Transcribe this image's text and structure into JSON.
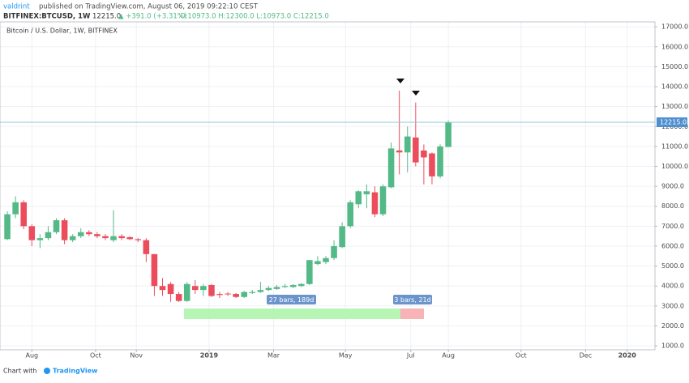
{
  "header": {
    "author": "valdrint",
    "published": "published on TradingView.com, August 06, 2019 09:22:10 CEST",
    "symbol": "BITFINEX:BTCUSD, 1W",
    "last": "12215.0",
    "change": "▲ +391.0 (+3.31%)",
    "ohlc_text": "O:10973.0 H:12300.0 L:10973.0 C:12215.0"
  },
  "footer": {
    "text": "Chart with",
    "brand": "TradingView"
  },
  "chart_data": {
    "type": "candlestick",
    "title": "Bitcoin / U.S. Dollar, 1W, BITFINEX",
    "up_color": "#53b987",
    "down_color": "#eb4d5c",
    "grid": true,
    "open": [
      6350,
      7600,
      8200,
      7000,
      6300,
      6400,
      6700,
      7300,
      6300,
      6500,
      6700,
      6600,
      6500,
      6300,
      6500,
      6450,
      6350,
      6300,
      5600,
      4000,
      4100,
      3600,
      3250,
      4000,
      3800,
      4050,
      3600,
      3620,
      3600,
      3450,
      3650,
      3700,
      3800,
      3850,
      3950,
      3950,
      4000,
      4100,
      5100,
      5200,
      5400,
      5950,
      7000,
      8100,
      8600,
      8700,
      7600,
      8950,
      10800,
      10700,
      11450,
      10800,
      10650,
      9500,
      10973
    ],
    "high": [
      7750,
      8500,
      8300,
      7100,
      6600,
      7000,
      7400,
      7400,
      6600,
      6900,
      6800,
      6700,
      6600,
      7800,
      6600,
      6500,
      6400,
      6400,
      5600,
      4400,
      4200,
      3700,
      4200,
      4300,
      4100,
      4100,
      3700,
      3700,
      3650,
      3750,
      3800,
      4200,
      4000,
      4050,
      4100,
      4100,
      4150,
      5300,
      5500,
      5500,
      6300,
      7200,
      8300,
      8800,
      9100,
      9000,
      9100,
      11200,
      13800,
      12000,
      13200,
      11100,
      10700,
      11100,
      12300
    ],
    "low": [
      6300,
      7400,
      6850,
      6000,
      5900,
      6300,
      6600,
      6100,
      6200,
      6400,
      6500,
      6400,
      6300,
      6200,
      6300,
      6300,
      6200,
      5200,
      3500,
      3500,
      3200,
      3200,
      3200,
      3600,
      3500,
      3450,
      3400,
      3500,
      3400,
      3400,
      3600,
      3650,
      3750,
      3800,
      3900,
      3900,
      3950,
      4050,
      5050,
      5100,
      5300,
      5900,
      6900,
      7900,
      7900,
      7450,
      7500,
      8900,
      9600,
      9700,
      10000,
      9100,
      9100,
      9400,
      10973
    ],
    "close": [
      7600,
      8200,
      7000,
      6300,
      6400,
      6700,
      7300,
      6300,
      6500,
      6700,
      6600,
      6500,
      6400,
      6500,
      6400,
      6350,
      6300,
      5600,
      4000,
      3800,
      3600,
      3250,
      4100,
      3800,
      4000,
      3500,
      3550,
      3580,
      3450,
      3700,
      3700,
      3800,
      3900,
      3950,
      4000,
      4050,
      4100,
      5300,
      5250,
      5400,
      6000,
      7000,
      8200,
      8750,
      8750,
      7600,
      9000,
      10900,
      10700,
      11500,
      10200,
      10450,
      9500,
      11000,
      12215
    ],
    "xlim": [
      -0.9,
      79.3
    ],
    "xticks": [
      {
        "value": 3.0,
        "label": "Aug"
      },
      {
        "value": 10.8,
        "label": "Oct"
      },
      {
        "value": 15.8,
        "label": "Nov"
      },
      {
        "value": 24.7,
        "label": "2019"
      },
      {
        "value": 32.6,
        "label": "Mar"
      },
      {
        "value": 41.4,
        "label": "May"
      },
      {
        "value": 49.4,
        "label": "Jul"
      },
      {
        "value": 54.0,
        "label": "Aug"
      },
      {
        "value": 62.9,
        "label": "Oct"
      },
      {
        "value": 70.8,
        "label": "Dec"
      },
      {
        "value": 75.9,
        "label": "2020"
      }
    ],
    "ylim": [
      800,
      17250
    ],
    "yticks": [
      {
        "value": 1000,
        "label": "1000.0"
      },
      {
        "value": 2000,
        "label": "2000.0"
      },
      {
        "value": 3000,
        "label": "3000.0"
      },
      {
        "value": 4000,
        "label": "4000.0"
      },
      {
        "value": 5000,
        "label": "5000.0"
      },
      {
        "value": 6000,
        "label": "6000.0"
      },
      {
        "value": 7000,
        "label": "7000.0"
      },
      {
        "value": 8000,
        "label": "8000.0"
      },
      {
        "value": 9000,
        "label": "9000.0"
      },
      {
        "value": 10000,
        "label": "10000.0"
      },
      {
        "value": 11000,
        "label": "11000.0"
      },
      {
        "value": 12000,
        "label": "12000.0"
      },
      {
        "value": 13000,
        "label": "13000.0"
      },
      {
        "value": 14000,
        "label": "14000.0"
      },
      {
        "value": 15000,
        "label": "15000.0"
      },
      {
        "value": 16000,
        "label": "16000.0"
      },
      {
        "value": 17000,
        "label": "17000.0"
      }
    ],
    "last_price": {
      "value": 12215,
      "label": "12215.0"
    },
    "annotations": [
      "27 bars, 189d",
      "3 bars, 21d"
    ]
  }
}
